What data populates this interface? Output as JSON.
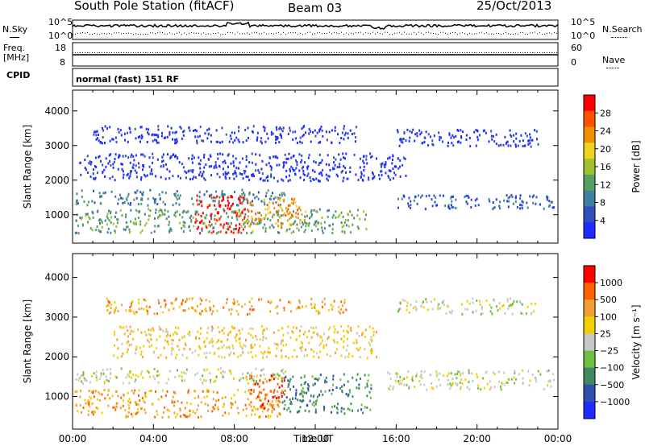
{
  "header": {
    "station": "South Pole Station (fitACF)",
    "beam": "Beam 03",
    "date": "25/Oct/2013"
  },
  "status_panels": {
    "nsky_label": "N.Sky",
    "nsearch_label": "N.Search",
    "noise_ticks_left": [
      "10^5",
      "10^0"
    ],
    "noise_ticks_right": [
      "10^5",
      "10^0"
    ],
    "freq_label": "Freq.",
    "freq_unit": "[MHz]",
    "freq_ticks": [
      "18",
      "8"
    ],
    "nave_label": "Nave",
    "nave_ticks": [
      "60",
      "0"
    ],
    "cpid_label": "CPID",
    "cpid_value": "normal (fast) 151 RF"
  },
  "chart_data": [
    {
      "type": "heatmap",
      "name": "power",
      "ylabel": "Slant Range [km]",
      "xlabel": "",
      "x_ticks": [
        "00:00",
        "04:00",
        "08:00",
        "12:00",
        "16:00",
        "20:00",
        "00:00"
      ],
      "xlim_hours": [
        0,
        24
      ],
      "y_ticks": [
        1000,
        2000,
        3000,
        4000
      ],
      "ylim": [
        180,
        4600
      ],
      "colorbar": {
        "label": "Power [dB]",
        "ticks": [
          "28",
          "24",
          "20",
          "16",
          "12",
          "8",
          "4"
        ],
        "colors": [
          "#1e2dff",
          "#2f4fbf",
          "#3f7fa0",
          "#55a060",
          "#a0c030",
          "#f0d020",
          "#f09000",
          "#ff5000",
          "#ff0000"
        ]
      },
      "bands": [
        {
          "t0": 0.1,
          "t1": 10.5,
          "r0": 1300,
          "r1": 1750,
          "level": 2
        },
        {
          "t0": 0.1,
          "t1": 14.5,
          "r0": 500,
          "r1": 1200,
          "level": 3
        },
        {
          "t0": 6.0,
          "t1": 8.5,
          "r0": 500,
          "r1": 1600,
          "level": 8
        },
        {
          "t0": 8.5,
          "t1": 11.5,
          "r0": 700,
          "r1": 1500,
          "level": 6
        },
        {
          "t0": 16.0,
          "t1": 23.8,
          "r0": 1200,
          "r1": 1600,
          "level": 1
        },
        {
          "t0": 0.3,
          "t1": 16.5,
          "r0": 2000,
          "r1": 2800,
          "level": 0
        },
        {
          "t0": 1.0,
          "t1": 14.0,
          "r0": 3100,
          "r1": 3600,
          "level": 0
        },
        {
          "t0": 16.0,
          "t1": 23.0,
          "r0": 3000,
          "r1": 3500,
          "level": 0
        }
      ]
    },
    {
      "type": "heatmap",
      "name": "velocity",
      "ylabel": "Slant Range [km]",
      "xlabel": "Time UT",
      "x_ticks": [
        "00:00",
        "04:00",
        "08:00",
        "12:00",
        "16:00",
        "20:00",
        "00:00"
      ],
      "xlim_hours": [
        0,
        24
      ],
      "y_ticks": [
        1000,
        2000,
        3000,
        4000
      ],
      "ylim": [
        180,
        4600
      ],
      "colorbar": {
        "label": "Velocity [m s⁻¹]",
        "ticks": [
          "1000",
          "500",
          "100",
          "25",
          "−25",
          "−100",
          "−500",
          "−1000"
        ],
        "colors": [
          "#1e2dff",
          "#3050b0",
          "#3f8a60",
          "#70c040",
          "#c8c8c8",
          "#f0d000",
          "#f0a030",
          "#ff6000",
          "#ff0000"
        ]
      },
      "bands": [
        {
          "t0": 0.1,
          "t1": 10.5,
          "r0": 1350,
          "r1": 1750,
          "level": 4
        },
        {
          "t0": 0.1,
          "t1": 10.3,
          "r0": 500,
          "r1": 1200,
          "level": 6
        },
        {
          "t0": 8.5,
          "t1": 10.5,
          "r0": 700,
          "r1": 1600,
          "level": 7
        },
        {
          "t0": 10.3,
          "t1": 14.8,
          "r0": 600,
          "r1": 1600,
          "level": 2
        },
        {
          "t0": 15.5,
          "t1": 23.8,
          "r0": 1200,
          "r1": 1700,
          "level": 4
        },
        {
          "t0": 2.0,
          "t1": 15.0,
          "r0": 2000,
          "r1": 2800,
          "level": 5
        },
        {
          "t0": 1.5,
          "t1": 13.5,
          "r0": 3100,
          "r1": 3500,
          "level": 6
        },
        {
          "t0": 16.0,
          "t1": 23.0,
          "r0": 3100,
          "r1": 3500,
          "level": 4
        }
      ]
    }
  ]
}
